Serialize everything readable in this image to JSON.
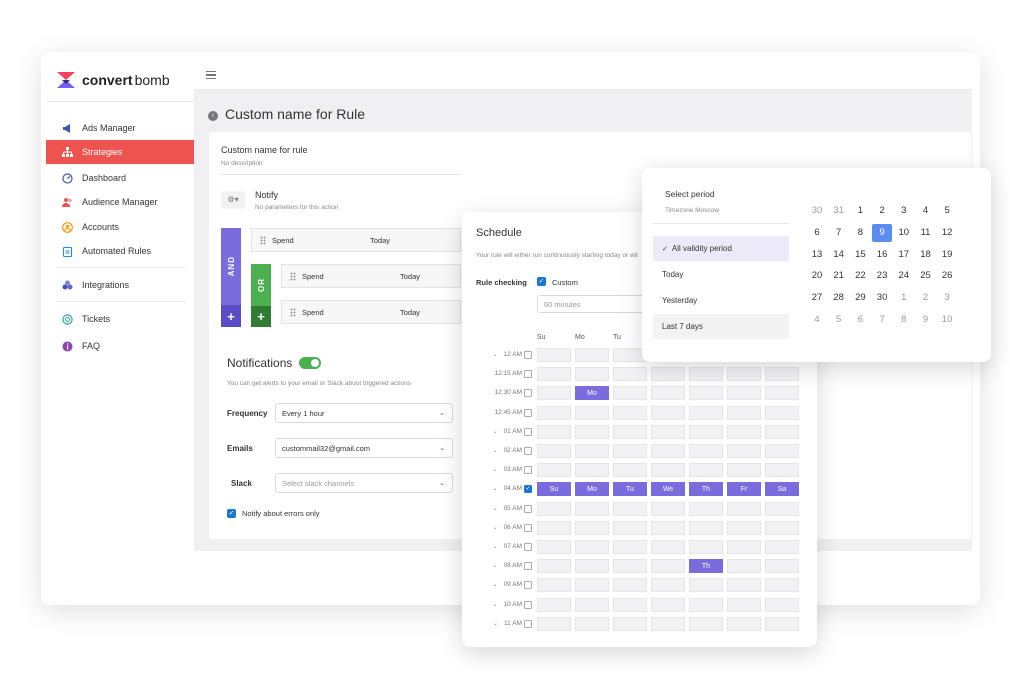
{
  "app": {
    "logo_bold": "convert",
    "logo_light": "bomb"
  },
  "sidebar": {
    "items": [
      {
        "label": "Ads Manager",
        "icon": "megaphone-icon"
      },
      {
        "label": "Strategies",
        "icon": "hierarchy-icon",
        "active": true
      },
      {
        "label": "Dashboard",
        "icon": "gauge-icon"
      },
      {
        "label": "Audience Manager",
        "icon": "users-icon"
      },
      {
        "label": "Accounts",
        "icon": "account-icon"
      },
      {
        "label": "Automated Rules",
        "icon": "clipboard-icon"
      },
      {
        "label": "Integrations",
        "icon": "puzzle-icon"
      },
      {
        "label": "Tickets",
        "icon": "ticket-icon"
      },
      {
        "label": "FAQ",
        "icon": "info-icon"
      }
    ]
  },
  "page": {
    "title": "Custom name for Rule"
  },
  "rule": {
    "name": "Custom name for rule",
    "description": "No description",
    "action_title": "Notify",
    "action_sub": "No parameters for this action",
    "and_label": "AND",
    "or_label": "OR",
    "plus": "+",
    "conditions": [
      {
        "metric": "Spend",
        "period": "Today"
      },
      {
        "metric": "Spend",
        "period": "Today"
      },
      {
        "metric": "Spend",
        "period": "Today"
      }
    ]
  },
  "notifications": {
    "title": "Notifications",
    "enabled": true,
    "description": "You can get alerts to your email or Slack about triggered actions",
    "frequency_label": "Frequency",
    "frequency_value": "Every 1 hour",
    "emails_label": "Emails",
    "emails_value": "custommail32@gmail.com",
    "slack_label": "Slack",
    "slack_placeholder": "Select slack channels",
    "errors_only_label": "Notify about errors only",
    "errors_only_checked": true
  },
  "schedule": {
    "title": "Schedule",
    "subtitle": "Your rule will either run continuously starting today or wit",
    "rule_checking_label": "Rule checking",
    "custom_label": "Custom",
    "custom_checked": true,
    "interval_placeholder": "60 minutes",
    "day_headers": [
      "Su",
      "Mo",
      "Tu"
    ],
    "days": [
      "Su",
      "Mo",
      "Tu",
      "We",
      "Th",
      "Fr",
      "Sa"
    ],
    "rows": [
      {
        "time": "12 AM",
        "expandable": true,
        "checked": false,
        "selected": []
      },
      {
        "time": "12:15 AM",
        "expandable": false,
        "checked": false,
        "selected": []
      },
      {
        "time": "12:30 AM",
        "expandable": false,
        "checked": false,
        "selected": [
          1
        ]
      },
      {
        "time": "12:45 AM",
        "expandable": false,
        "checked": false,
        "selected": []
      },
      {
        "time": "01 AM",
        "expandable": true,
        "checked": false,
        "selected": []
      },
      {
        "time": "02 AM",
        "expandable": true,
        "checked": false,
        "selected": []
      },
      {
        "time": "03 AM",
        "expandable": true,
        "checked": false,
        "selected": []
      },
      {
        "time": "04 AM",
        "expandable": true,
        "checked": true,
        "selected": [
          0,
          1,
          2,
          3,
          4,
          5,
          6
        ]
      },
      {
        "time": "05 AM",
        "expandable": true,
        "checked": false,
        "selected": []
      },
      {
        "time": "06 AM",
        "expandable": true,
        "checked": false,
        "selected": []
      },
      {
        "time": "07 AM",
        "expandable": true,
        "checked": false,
        "selected": []
      },
      {
        "time": "08 AM",
        "expandable": true,
        "checked": false,
        "selected": [
          4
        ]
      },
      {
        "time": "09 AM",
        "expandable": true,
        "checked": false,
        "selected": []
      },
      {
        "time": "10 AM",
        "expandable": true,
        "checked": false,
        "selected": []
      },
      {
        "time": "11 AM",
        "expandable": true,
        "checked": false,
        "selected": []
      }
    ]
  },
  "period": {
    "title": "Select period",
    "timezone": "Timezone Moscow",
    "options": [
      {
        "label": "All validity period",
        "selected": true
      },
      {
        "label": "Today",
        "selected": false
      },
      {
        "label": "Yesterday",
        "selected": false
      },
      {
        "label": "Last 7 days",
        "selected": false
      }
    ],
    "check": "✓",
    "calendar": [
      [
        "30",
        "31",
        "1",
        "2",
        "3",
        "4",
        "5"
      ],
      [
        "6",
        "7",
        "8",
        "9",
        "10",
        "11",
        "12"
      ],
      [
        "13",
        "14",
        "15",
        "16",
        "17",
        "18",
        "19"
      ],
      [
        "20",
        "21",
        "22",
        "23",
        "24",
        "25",
        "26"
      ],
      [
        "27",
        "28",
        "29",
        "30",
        "1",
        "2",
        "3"
      ],
      [
        "4",
        "5",
        "6",
        "7",
        "8",
        "9",
        "10"
      ]
    ],
    "selected_day": "9"
  }
}
